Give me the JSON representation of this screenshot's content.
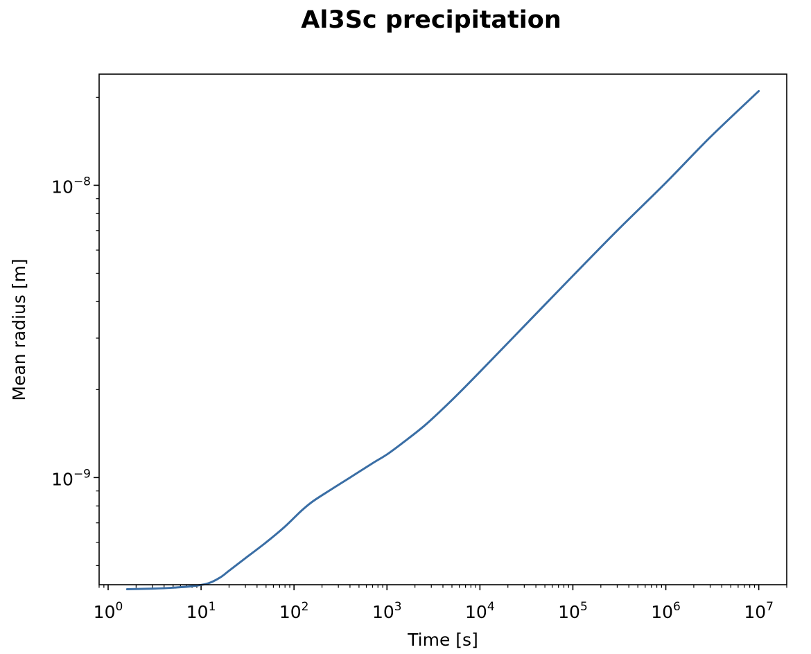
{
  "chart_data": {
    "type": "line",
    "title": "Al3Sc precipitation",
    "xlabel": "Time [s]",
    "ylabel": "Mean radius [m]",
    "x_scale": "log",
    "y_scale": "log",
    "xlim": [
      0.8,
      20000000
    ],
    "ylim": [
      4.3e-10,
      2.4e-08
    ],
    "x_ticks": [
      {
        "value": 1,
        "base": "10",
        "exp": "0"
      },
      {
        "value": 10,
        "base": "10",
        "exp": "1"
      },
      {
        "value": 100,
        "base": "10",
        "exp": "2"
      },
      {
        "value": 1000,
        "base": "10",
        "exp": "3"
      },
      {
        "value": 10000,
        "base": "10",
        "exp": "4"
      },
      {
        "value": 100000,
        "base": "10",
        "exp": "5"
      },
      {
        "value": 1000000,
        "base": "10",
        "exp": "6"
      },
      {
        "value": 10000000,
        "base": "10",
        "exp": "7"
      }
    ],
    "y_ticks": [
      {
        "value": 1e-09,
        "base": "10",
        "exp": "−9"
      },
      {
        "value": 1e-08,
        "base": "10",
        "exp": "−8"
      }
    ],
    "grid": false,
    "legend": "none",
    "series": [
      {
        "color": "#3a6ea5",
        "x": [
          1.6,
          3,
          5,
          8,
          12,
          16,
          20,
          30,
          50,
          80,
          120,
          160,
          250,
          400,
          700,
          1000,
          1500,
          2500,
          4000,
          6000,
          10000,
          30000,
          100000,
          300000,
          1000000,
          3000000,
          10000000
        ],
        "y": [
          4.15e-10,
          4.17e-10,
          4.2e-10,
          4.25e-10,
          4.35e-10,
          4.55e-10,
          4.8e-10,
          5.3e-10,
          6e-10,
          6.8e-10,
          7.7e-10,
          8.3e-10,
          9.1e-10,
          1e-09,
          1.12e-09,
          1.2e-09,
          1.32e-09,
          1.5e-09,
          1.72e-09,
          1.95e-09,
          2.3e-09,
          3.3e-09,
          4.9e-09,
          7e-09,
          1.02e-08,
          1.46e-08,
          2.1e-08
        ]
      }
    ]
  }
}
